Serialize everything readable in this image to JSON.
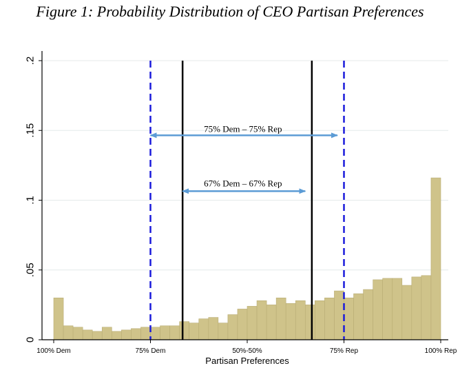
{
  "title": "Figure 1: Probability Distribution of CEO Partisan Preferences",
  "chart_data": {
    "type": "bar",
    "xlabel": "Partisan Preferences",
    "ylabel": "",
    "ylim": [
      0,
      0.2
    ],
    "yticks": [
      {
        "value": 0,
        "label": "0"
      },
      {
        "value": 0.05,
        "label": ".05"
      },
      {
        "value": 0.1,
        "label": ".1"
      },
      {
        "value": 0.15,
        "label": ".15"
      },
      {
        "value": 0.2,
        "label": ".2"
      }
    ],
    "xrange": [
      0,
      1
    ],
    "xticks": [
      {
        "value": 0,
        "label": "100% Dem"
      },
      {
        "value": 0.25,
        "label": "75% Dem"
      },
      {
        "value": 0.5,
        "label": "50%-50%"
      },
      {
        "value": 0.75,
        "label": "75% Rep"
      },
      {
        "value": 1,
        "label": "100% Rep"
      }
    ],
    "bin_width": 0.025,
    "values": [
      0.03,
      0.01,
      0.009,
      0.007,
      0.006,
      0.009,
      0.006,
      0.007,
      0.008,
      0.009,
      0.009,
      0.01,
      0.01,
      0.013,
      0.012,
      0.015,
      0.016,
      0.012,
      0.018,
      0.022,
      0.024,
      0.028,
      0.025,
      0.03,
      0.026,
      0.028,
      0.025,
      0.028,
      0.03,
      0.035,
      0.03,
      0.033,
      0.036,
      0.043,
      0.044,
      0.044,
      0.039,
      0.045,
      0.046,
      0.116
    ],
    "bar_color": "#cfc38a",
    "bar_edge_color": "#b8ac74",
    "vlines": [
      {
        "x": 0.25,
        "style": "dashed",
        "color": "#1a1adb"
      },
      {
        "x": 0.333,
        "style": "solid",
        "color": "#000000"
      },
      {
        "x": 0.667,
        "style": "solid",
        "color": "#000000"
      },
      {
        "x": 0.75,
        "style": "dashed",
        "color": "#1a1adb"
      }
    ],
    "annotations": [
      {
        "text": "75% Dem – 75% Rep",
        "x_from": 0.25,
        "x_to": 0.733,
        "y": 0.1465,
        "text_x": 0.489,
        "text_y": 0.149
      },
      {
        "text": "67% Dem – 67% Rep",
        "x_from": 0.333,
        "x_to": 0.65,
        "y": 0.1065,
        "text_x": 0.489,
        "text_y": 0.11
      }
    ],
    "arrow_color": "#5b9bd5",
    "grid": true,
    "grid_color": "#e4eaea"
  }
}
